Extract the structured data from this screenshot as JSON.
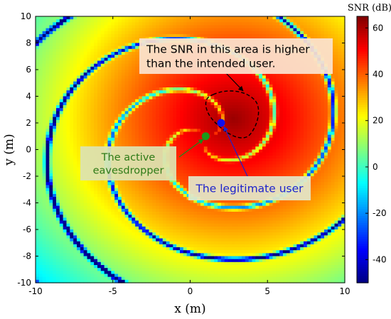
{
  "chart_data": {
    "type": "heatmap",
    "xlabel": "x (m)",
    "ylabel": "y (m)",
    "xlim": [
      -10,
      10
    ],
    "ylim": [
      -10,
      10
    ],
    "xticks": [
      -10,
      -5,
      0,
      5,
      10
    ],
    "yticks": [
      -10,
      -8,
      -6,
      -4,
      -2,
      0,
      2,
      4,
      6,
      8,
      10
    ],
    "colorbar": {
      "title": "SNR (dB)",
      "range": [
        -50,
        65
      ],
      "ticks": [
        -40,
        -20,
        0,
        20,
        40,
        60
      ],
      "colormap": "jet"
    },
    "points": [
      {
        "id": "eavesdropper",
        "x": 1.0,
        "y": 1.0,
        "color": "#1a9a1a"
      },
      {
        "id": "legitimate_user",
        "x": 2.0,
        "y": 2.0,
        "color": "#1010ee"
      }
    ],
    "annotations": [
      {
        "id": "higher-snr",
        "text": [
          "The SNR in this area is higher",
          "than the intended user."
        ],
        "text_color": "#000000",
        "box_color": "#fbe3cf"
      },
      {
        "id": "eavesdropper",
        "text": [
          "The active",
          "eavesdropper"
        ],
        "text_color": "#2d7a16",
        "box_color": "#dde3b2"
      },
      {
        "id": "legitimate",
        "text": [
          "The legitimate user"
        ],
        "text_color": "#1d22cc",
        "box_color": "#e3e6c8"
      }
    ],
    "region_outline": {
      "style": "dashed",
      "color": "#000000",
      "approx_center": [
        2.8,
        2.3
      ]
    }
  }
}
